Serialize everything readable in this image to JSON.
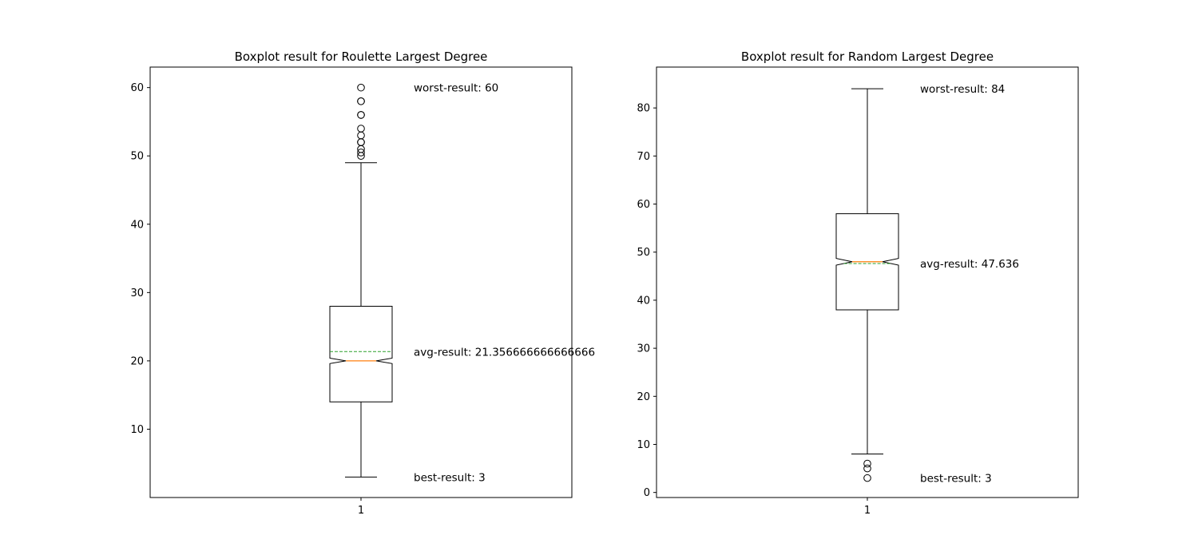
{
  "chart_data": [
    {
      "type": "boxplot",
      "title": "Boxplot result for Roulette Largest Degree",
      "xlabel": "",
      "ylabel": "",
      "categories": [
        "1"
      ],
      "ylim": [
        0,
        63
      ],
      "yticks": [
        10,
        20,
        30,
        40,
        50,
        60
      ],
      "notched": true,
      "show_mean_line": true,
      "box": {
        "whisker_low": 3,
        "q1": 14,
        "median": 20,
        "q3": 28,
        "whisker_high": 49,
        "mean": 21.356666666666666,
        "notch_low": 19.6,
        "notch_high": 20.4,
        "outliers": [
          50,
          50.5,
          51,
          52,
          52,
          53,
          54,
          56,
          56,
          58,
          58,
          60
        ]
      },
      "annotations": [
        {
          "text": "worst-result: 60",
          "y": 60
        },
        {
          "text": "avg-result: 21.356666666666666",
          "y": 21.36
        },
        {
          "text": "best-result: 3",
          "y": 3
        }
      ],
      "colors": {
        "median": "#ff7f0e",
        "mean": "#2ca02c",
        "box": "#000000"
      }
    },
    {
      "type": "boxplot",
      "title": "Boxplot result for Random Largest Degree",
      "xlabel": "",
      "ylabel": "",
      "categories": [
        "1"
      ],
      "ylim": [
        -1.05,
        88.5
      ],
      "yticks": [
        0,
        10,
        20,
        30,
        40,
        50,
        60,
        70,
        80
      ],
      "notched": true,
      "show_mean_line": true,
      "box": {
        "whisker_low": 8,
        "q1": 38,
        "median": 48,
        "q3": 58,
        "whisker_high": 84,
        "mean": 47.636,
        "notch_low": 47.3,
        "notch_high": 48.7,
        "outliers": [
          6,
          5,
          3
        ]
      },
      "annotations": [
        {
          "text": "worst-result: 84",
          "y": 84
        },
        {
          "text": "avg-result: 47.636",
          "y": 47.64
        },
        {
          "text": "best-result: 3",
          "y": 3
        }
      ],
      "colors": {
        "median": "#ff7f0e",
        "mean": "#2ca02c",
        "box": "#000000"
      }
    }
  ]
}
